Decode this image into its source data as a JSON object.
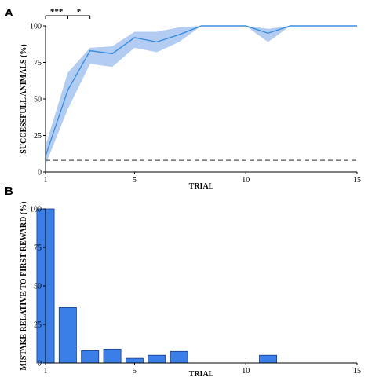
{
  "chart_data": [
    {
      "panel": "A",
      "type": "line",
      "title": "",
      "xlabel": "TRIAL",
      "ylabel": "SUCCESSFULL ANIMALS (%)",
      "xlim": [
        1,
        15
      ],
      "ylim": [
        0,
        100
      ],
      "xticks": [
        1,
        5,
        10,
        15
      ],
      "yticks": [
        0,
        25,
        50,
        75,
        100
      ],
      "series": [
        {
          "x": [
            1,
            2,
            3,
            4,
            5,
            6,
            7,
            8,
            9,
            10,
            11,
            12,
            13,
            14,
            15
          ],
          "y": [
            11,
            56,
            83,
            81,
            92,
            89,
            94,
            100,
            100,
            100,
            95,
            100,
            100,
            100,
            100
          ],
          "lower": [
            5,
            43,
            74,
            72,
            85,
            82,
            89,
            100,
            100,
            100,
            89,
            100,
            100,
            100,
            100
          ],
          "upper": [
            18,
            68,
            85,
            86,
            96,
            96,
            99,
            100,
            100,
            100,
            98,
            100,
            100,
            100,
            100
          ],
          "color": "#3a8fe0",
          "band_color": "#b3cdf2"
        }
      ],
      "reference_line": {
        "y": 8,
        "style": "dashed",
        "color": "#555555"
      },
      "annotations": [
        {
          "text": "***",
          "x_from": 1,
          "x_to": 2
        },
        {
          "text": "*",
          "x_from": 2,
          "x_to": 3
        }
      ],
      "grid": false
    },
    {
      "panel": "B",
      "type": "bar",
      "title": "",
      "xlabel": "TRIAL",
      "ylabel": "MISTAKE RELATIVE TO FIRST REWARD (%)",
      "xlim": [
        1,
        15
      ],
      "ylim": [
        0,
        100
      ],
      "xticks": [
        1,
        5,
        10,
        15
      ],
      "yticks": [
        0,
        25,
        50,
        75,
        100
      ],
      "categories": [
        1,
        2,
        3,
        4,
        5,
        6,
        7,
        8,
        9,
        10,
        11,
        12,
        13,
        14,
        15
      ],
      "values": [
        100,
        36,
        8,
        9,
        3,
        5,
        7.5,
        0,
        0,
        0,
        5,
        0,
        0,
        0,
        0
      ],
      "bar_color": "#3a7ee8",
      "bar_edge": "#1a3a8a",
      "grid": false
    }
  ]
}
